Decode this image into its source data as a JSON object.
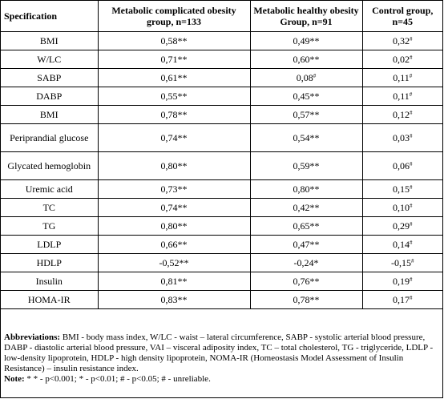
{
  "headers": {
    "spec": "Specification",
    "g1": "Metabolic complicated obesity group, n=133",
    "g2": "Metabolic healthy obesity Group, n=91",
    "g3": "Control group, n=45"
  },
  "rows": [
    {
      "spec": "BMI",
      "g1": "0,58**",
      "g2": "0,49**",
      "g3": "0,32",
      "g3_sup": "#"
    },
    {
      "spec": "W/LC",
      "g1": "0,71**",
      "g2": "0,60**",
      "g3": "0,02",
      "g3_sup": "#"
    },
    {
      "spec": "SABP",
      "g1": "0,61**",
      "g2": "0,08",
      "g2_sup": "#",
      "g3": "0,11",
      "g3_sup": "#"
    },
    {
      "spec": "DABP",
      "g1": "0,55**",
      "g2": "0,45**",
      "g3": "0,11",
      "g3_sup": "#"
    },
    {
      "spec": "BMI",
      "g1": "0,78**",
      "g2": "0,57**",
      "g3": "0,12",
      "g3_sup": "#"
    },
    {
      "spec": "Periprandial glucose",
      "g1": "0,74**",
      "g2": "0,54**",
      "g3": "0,03",
      "g3_sup": "#"
    },
    {
      "spec": "Glycated hemoglobin",
      "g1": "0,80**",
      "g2": "0,59**",
      "g3": "0,06",
      "g3_sup": "#"
    },
    {
      "spec": "Uremic acid",
      "g1": "0,73**",
      "g2": "0,80**",
      "g3": "0,15",
      "g3_sup": "#"
    },
    {
      "spec": "TC",
      "g1": "0,74**",
      "g2": "0,42**",
      "g3": "0,10",
      "g3_sup": "#"
    },
    {
      "spec": "TG",
      "g1": "0,80**",
      "g2": "0,65**",
      "g3": "0,29",
      "g3_sup": "#"
    },
    {
      "spec": "LDLP",
      "g1": "0,66**",
      "g2": "0,47**",
      "g3": "0,14",
      "g3_sup": "#"
    },
    {
      "spec": "HDLP",
      "g1": "-0,52**",
      "g2": "-0,24*",
      "g3": "-0,15",
      "g3_sup": "#"
    },
    {
      "spec": "Insulin",
      "g1": "0,81**",
      "g2": "0,76**",
      "g3": "0,19",
      "g3_sup": "#"
    },
    {
      "spec": "HOMA-IR",
      "g1": "0,83**",
      "g2": "0,78**",
      "g3": "0,17",
      "g3_sup": "#"
    }
  ],
  "notes": {
    "abbr_label": "Abbreviations:",
    "abbr_text": " BMI - body mass index, W/LC - waist – lateral circumference, SABP - systolic arterial blood pressure, DABP - diastolic arterial blood pressure, VAI – visceral adiposity index, TC – total cholesterol, TG - triglyceride, LDLP - low-density lipoprotein, HDLP - high density lipoprotein, NOMA-IR (Homeostasis Model Assessment of Insulin Resistance) – insulin resistance index.",
    "note_label": "Note:",
    "note_text": " * * - p<0.001; * - p<0.01; # - p<0.05; # - unreliable."
  }
}
